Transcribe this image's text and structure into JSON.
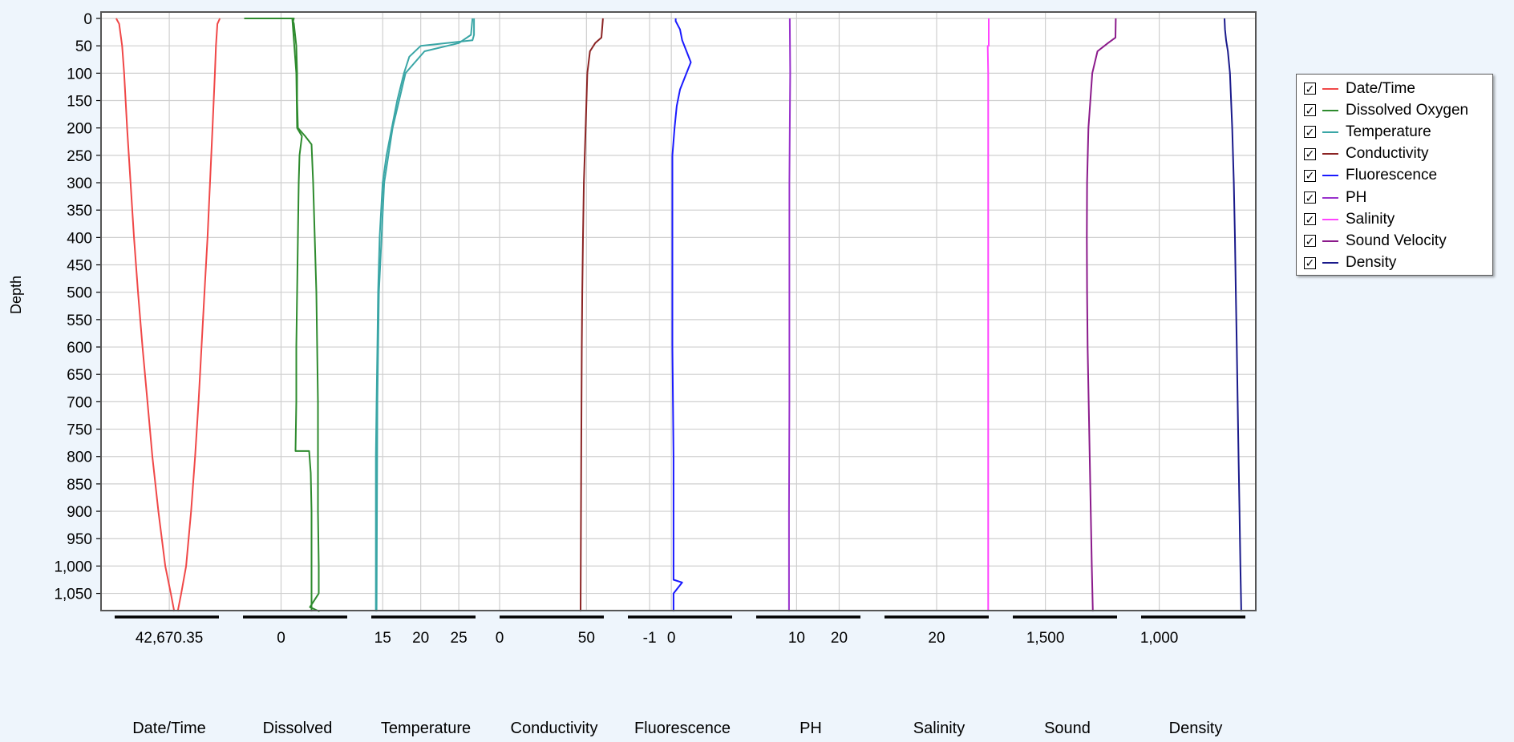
{
  "chart_data": {
    "type": "line",
    "orientation": "depth-profile",
    "y_axis": {
      "label": "Depth",
      "inverted": true,
      "range": [
        0,
        1083
      ],
      "ticks": [
        "0",
        "50",
        "100",
        "150",
        "200",
        "250",
        "300",
        "350",
        "400",
        "450",
        "500",
        "550",
        "600",
        "650",
        "700",
        "750",
        "800",
        "850",
        "900",
        "950",
        "1,000",
        "1,050"
      ],
      "tick_values": [
        0,
        50,
        100,
        150,
        200,
        250,
        300,
        350,
        400,
        450,
        500,
        550,
        600,
        650,
        700,
        750,
        800,
        850,
        900,
        950,
        1000,
        1050
      ]
    },
    "grid": true,
    "legend_position": "right",
    "tracks": [
      {
        "name": "Date/Time",
        "color": "#f04848",
        "xlim": [
          42670.24,
          42670.45
        ],
        "ticks": [
          {
            "v": 42670.35,
            "label": "42,670.35"
          }
        ],
        "series": [
          {
            "depth": [
              0,
              10,
              50,
              100,
              200,
              300,
              400,
              500,
              600,
              700,
              800,
              900,
              1000,
              1050,
              1083
            ],
            "values": [
              42670.243,
              42670.249,
              42670.255,
              42670.259,
              42670.265,
              42670.272,
              42670.279,
              42670.287,
              42670.296,
              42670.306,
              42670.316,
              42670.328,
              42670.342,
              42670.353,
              42670.36
            ]
          },
          {
            "depth": [
              1083,
              1050,
              1000,
              900,
              800,
              700,
              600,
              500,
              400,
              300,
              200,
              100,
              50,
              10,
              0
            ],
            "values": [
              42670.367,
              42670.374,
              42670.384,
              42670.394,
              42670.402,
              42670.409,
              42670.415,
              42670.421,
              42670.427,
              42670.432,
              42670.437,
              42670.442,
              42670.444,
              42670.447,
              42670.452
            ]
          }
        ]
      },
      {
        "name": "Dissolved",
        "legend": "Dissolved Oxygen",
        "color": "#2e8b2e",
        "xlim": [
          -4.75,
          8.25
        ],
        "ticks": [
          {
            "v": 0,
            "label": "0"
          }
        ],
        "series": [
          {
            "depth": [
              0,
              0,
              5,
              10,
              50,
              100,
              150,
              200,
              215,
              230,
              300,
              400,
              500,
              600,
              700,
              800,
              900,
              1000,
              1050,
              1075,
              1083
            ],
            "values": [
              -4.6,
              1.6,
              1.5,
              1.6,
              1.9,
              2.0,
              2.0,
              2.1,
              3.0,
              3.8,
              4.0,
              4.2,
              4.4,
              4.5,
              4.6,
              4.6,
              4.6,
              4.7,
              4.7,
              3.6,
              4.8
            ]
          },
          {
            "depth": [
              0,
              100,
              200,
              215,
              250,
              300,
              400,
              500,
              600,
              700,
              790,
              790,
              830,
              900,
              1000,
              1060,
              1083
            ],
            "values": [
              1.4,
              1.9,
              2.0,
              2.6,
              2.3,
              2.2,
              2.1,
              2.0,
              1.9,
              1.9,
              1.8,
              3.5,
              3.7,
              3.8,
              3.8,
              3.8,
              3.8
            ]
          }
        ]
      },
      {
        "name": "Temperature",
        "legend": "Temperature",
        "color": "#3aa6a6",
        "xlim": [
          13.5,
          27.2
        ],
        "ticks": [
          {
            "v": 15,
            "label": "15"
          },
          {
            "v": 20,
            "label": "20"
          },
          {
            "v": 25,
            "label": "25"
          }
        ],
        "series": [
          {
            "depth": [
              0,
              30,
              40,
              50,
              70,
              100,
              150,
              200,
              250,
              300,
              400,
              500,
              600,
              700,
              800,
              1000,
              1083
            ],
            "values": [
              27.0,
              27.0,
              26.8,
              20.0,
              18.5,
              17.8,
              16.9,
              16.2,
              15.5,
              15.0,
              14.6,
              14.4,
              14.3,
              14.2,
              14.1,
              14.1,
              14.1
            ]
          },
          {
            "depth": [
              0,
              30,
              45,
              60,
              100,
              200,
              300,
              500,
              700,
              1083
            ],
            "values": [
              26.8,
              26.6,
              25.0,
              20.5,
              18.0,
              16.3,
              15.2,
              14.5,
              14.3,
              14.2
            ]
          }
        ]
      },
      {
        "name": "Conductivity",
        "legend": "Conductivity",
        "color": "#8b2424",
        "xlim": [
          0,
          60
        ],
        "ticks": [
          {
            "v": 0,
            "label": "0"
          },
          {
            "v": 50,
            "label": "50"
          }
        ],
        "series": [
          {
            "depth": [
              0,
              35,
              45,
              60,
              100,
              200,
              300,
              400,
              500,
              600,
              800,
              1083
            ],
            "values": [
              59.5,
              58.6,
              55.0,
              52.0,
              50.5,
              49.5,
              48.5,
              48.0,
              47.6,
              47.3,
              47.0,
              46.6
            ]
          }
        ]
      },
      {
        "name": "Fluorescence",
        "legend": "Fluorescence",
        "color": "#1a1aff",
        "xlim": [
          -2.0,
          2.8
        ],
        "ticks": [
          {
            "v": -1,
            "label": "-1"
          },
          {
            "v": 0,
            "label": "0"
          }
        ],
        "series": [
          {
            "depth": [
              0,
              5,
              20,
              40,
              60,
              80,
              100,
              130,
              160,
              200,
              250,
              400,
              600,
              800,
              1000,
              1025,
              1030,
              1050,
              1083
            ],
            "values": [
              0.2,
              0.2,
              0.4,
              0.5,
              0.7,
              0.9,
              0.7,
              0.4,
              0.25,
              0.15,
              0.05,
              0.05,
              0.05,
              0.1,
              0.1,
              0.1,
              0.5,
              0.1,
              0.1
            ]
          }
        ]
      },
      {
        "name": "PH",
        "legend": "PH",
        "color": "#9932cc",
        "xlim": [
          0.5,
          25
        ],
        "ticks": [
          {
            "v": 10,
            "label": "10"
          },
          {
            "v": 20,
            "label": "20"
          }
        ],
        "series": [
          {
            "depth": [
              0,
              5,
              100,
              200,
              300,
              500,
              700,
              900,
              1083
            ],
            "values": [
              8.4,
              8.4,
              8.5,
              8.4,
              8.3,
              8.3,
              8.3,
              8.2,
              8.2
            ]
          }
        ]
      },
      {
        "name": "Salinity",
        "legend": "Salinity",
        "color": "#ff44ff",
        "xlim": [
          0,
          40
        ],
        "ticks": [
          {
            "v": 20,
            "label": "20"
          }
        ],
        "series": [
          {
            "depth": [
              0,
              50,
              50,
              100,
              200,
              500,
              800,
              1083
            ],
            "values": [
              40,
              40,
              39.6,
              39.8,
              39.8,
              39.8,
              39.8,
              39.8
            ]
          }
        ]
      },
      {
        "name": "Sound",
        "legend": "Sound Velocity",
        "color": "#8b1a8b",
        "xlim": [
          1475,
          1555
        ],
        "ticks": [
          {
            "v": 1500,
            "label": "1,500"
          }
        ],
        "series": [
          {
            "depth": [
              0,
              35,
              45,
              60,
              100,
              150,
              200,
              300,
              400,
              500,
              600,
              700,
              800,
              900,
              1000,
              1083
            ],
            "values": [
              1554,
              1553.8,
              1548,
              1540,
              1536,
              1534.5,
              1533,
              1532,
              1531.8,
              1532,
              1532.4,
              1533.2,
              1534,
              1534.8,
              1535.6,
              1536.4
            ]
          }
        ]
      },
      {
        "name": "Density",
        "legend": "Density",
        "color": "#1a1a8b",
        "xlim": [
          992,
          1038
        ],
        "ticks": [
          {
            "v": 1000,
            "label": "1,000"
          }
        ],
        "series": [
          {
            "depth": [
              0,
              20,
              40,
              60,
              100,
              200,
              300,
              400,
              500,
              600,
              700,
              800,
              900,
              1000,
              1083
            ],
            "values": [
              1028.8,
              1029.0,
              1029.5,
              1030.3,
              1031.2,
              1032.2,
              1032.9,
              1033.4,
              1033.8,
              1034.2,
              1034.6,
              1035.0,
              1035.4,
              1035.8,
              1036.2
            ]
          }
        ]
      }
    ]
  },
  "legend": {
    "items": [
      {
        "label": "Date/Time",
        "color": "#f04848",
        "checked": true,
        "icon": "checkbox-checked-icon"
      },
      {
        "label": "Dissolved Oxygen",
        "color": "#2e8b2e",
        "checked": true,
        "icon": "checkbox-checked-icon"
      },
      {
        "label": "Temperature",
        "color": "#3aa6a6",
        "checked": true,
        "icon": "checkbox-checked-icon"
      },
      {
        "label": "Conductivity",
        "color": "#8b2424",
        "checked": true,
        "icon": "checkbox-checked-icon"
      },
      {
        "label": "Fluorescence",
        "color": "#1a1aff",
        "checked": true,
        "icon": "checkbox-checked-icon"
      },
      {
        "label": "PH",
        "color": "#9932cc",
        "checked": true,
        "icon": "checkbox-checked-icon"
      },
      {
        "label": "Salinity",
        "color": "#ff44ff",
        "checked": true,
        "icon": "checkbox-checked-icon"
      },
      {
        "label": "Sound Velocity",
        "color": "#8b1a8b",
        "checked": true,
        "icon": "checkbox-checked-icon"
      },
      {
        "label": "Density",
        "color": "#1a1a8b",
        "checked": true,
        "icon": "checkbox-checked-icon"
      }
    ]
  },
  "colors": {
    "page_background": "#eef5fc",
    "plot_background": "#ffffff",
    "grid": "#cfcfcf",
    "frame": "#555555"
  }
}
